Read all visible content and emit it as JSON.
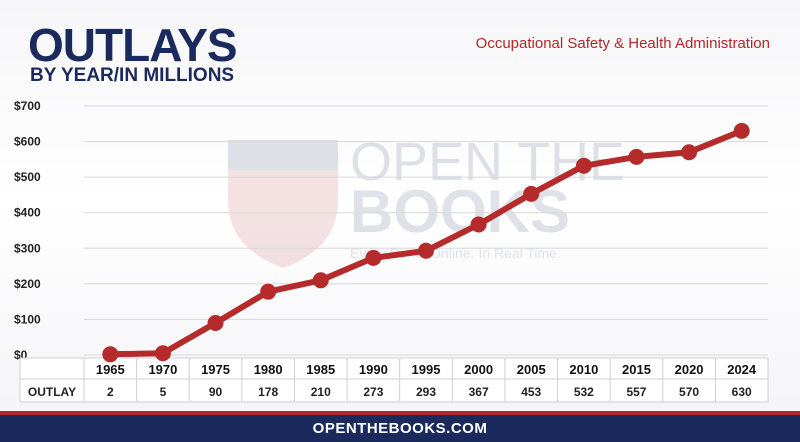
{
  "header": {
    "title": "OUTLAYS",
    "subtitle": "BY YEAR/IN MILLIONS",
    "agency": "Occupational Safety & Health Administration"
  },
  "watermark": {
    "line1": "OPEN THE",
    "line2": "BOOKS",
    "tagline": "Every Dime. Online. In Real Time."
  },
  "footer": {
    "site": "OPENTHEBOOKS.COM"
  },
  "colors": {
    "navy": "#1b2a5c",
    "red": "#b3262c",
    "line": "#b52a2a"
  },
  "chart_data": {
    "type": "line",
    "title": "OUTLAYS",
    "subtitle": "BY YEAR/IN MILLIONS",
    "categories": [
      "1965",
      "1970",
      "1975",
      "1980",
      "1985",
      "1990",
      "1995",
      "2000",
      "2005",
      "2010",
      "2015",
      "2020",
      "2024"
    ],
    "series": [
      {
        "name": "OUTLAY",
        "values": [
          2,
          5,
          90,
          178,
          210,
          273,
          293,
          367,
          453,
          532,
          557,
          570,
          630
        ]
      }
    ],
    "yticks": [
      "$0",
      "$100",
      "$200",
      "$300",
      "$400",
      "$500",
      "$600",
      "$700"
    ],
    "ylim": [
      0,
      700
    ],
    "grid": true,
    "table_label": "OUTLAY"
  }
}
